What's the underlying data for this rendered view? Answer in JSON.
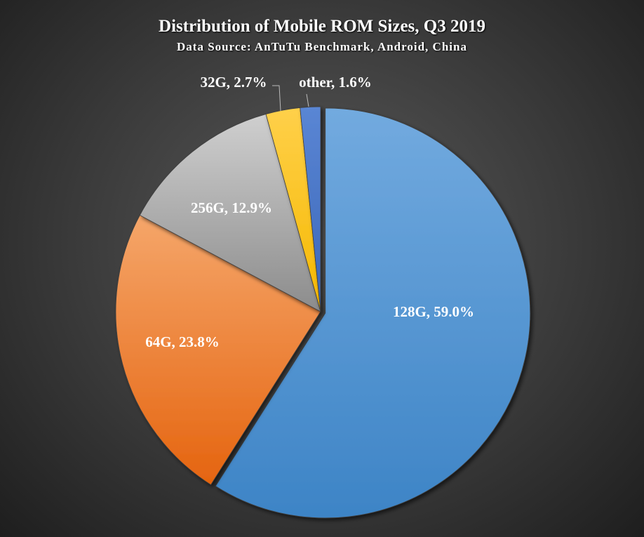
{
  "chart_data": {
    "type": "pie",
    "title": "Distribution of Mobile ROM Sizes, Q3 2019",
    "subtitle": "Data Source: AnTuTu Benchmark, Android, China",
    "categories": [
      "128G",
      "64G",
      "256G",
      "32G",
      "other"
    ],
    "values": [
      59.0,
      23.8,
      12.9,
      2.7,
      1.6
    ],
    "labels": [
      "128G, 59.0%",
      "64G, 23.8%",
      "256G, 12.9%",
      "32G, 2.7%",
      "other, 1.6%"
    ],
    "colors": [
      "#5b9bd5",
      "#ed7d31",
      "#a5a5a5",
      "#ffc000",
      "#4472c4"
    ],
    "exploded": [
      "128G"
    ]
  }
}
